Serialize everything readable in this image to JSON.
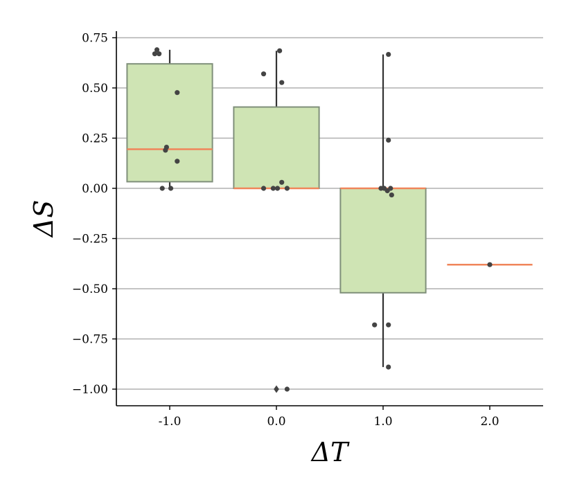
{
  "chart_data": {
    "type": "box",
    "xlabel": "ΔT",
    "ylabel": "ΔS",
    "categories": [
      "-1.0",
      "0.0",
      "1.0",
      "2.0"
    ],
    "ylim": [
      -1.08,
      0.78
    ],
    "yticks": [
      0.75,
      0.5,
      0.25,
      0.0,
      -0.25,
      -0.5,
      -0.75,
      -1.0
    ],
    "ytick_labels": [
      "0.75",
      "0.50",
      "0.25",
      "0.00",
      "−0.25",
      "−0.50",
      "−0.75",
      "−1.00"
    ],
    "grid": "horizontal",
    "colors": {
      "box_fill": "#cfe4b4",
      "box_edge": "#7f8f7a",
      "median": "#f0855a",
      "points": "#444444",
      "grid": "#b0b0b0"
    },
    "boxes": [
      {
        "category": "-1.0",
        "q1": 0.033,
        "median": 0.195,
        "q3": 0.62,
        "whisker_low": 0.0,
        "whisker_high": 0.69,
        "outliers": []
      },
      {
        "category": "0.0",
        "q1": 0.0,
        "median": 0.0,
        "q3": 0.405,
        "whisker_low": 0.0,
        "whisker_high": 0.685,
        "outliers": [
          -1.0
        ]
      },
      {
        "category": "1.0",
        "q1": -0.52,
        "median": 0.0,
        "q3": 0.0,
        "whisker_low": -0.89,
        "whisker_high": 0.667,
        "outliers": []
      },
      {
        "category": "2.0",
        "q1": -0.38,
        "median": -0.38,
        "q3": -0.38,
        "whisker_low": -0.38,
        "whisker_high": -0.38,
        "outliers": []
      }
    ],
    "points": [
      {
        "category": "-1.0",
        "jitter": -0.12,
        "y": 0.69
      },
      {
        "category": "-1.0",
        "jitter": -0.14,
        "y": 0.67
      },
      {
        "category": "-1.0",
        "jitter": -0.1,
        "y": 0.67
      },
      {
        "category": "-1.0",
        "jitter": 0.07,
        "y": 0.477
      },
      {
        "category": "-1.0",
        "jitter": -0.03,
        "y": 0.205
      },
      {
        "category": "-1.0",
        "jitter": -0.04,
        "y": 0.19
      },
      {
        "category": "-1.0",
        "jitter": 0.07,
        "y": 0.135
      },
      {
        "category": "-1.0",
        "jitter": -0.07,
        "y": 0.0
      },
      {
        "category": "-1.0",
        "jitter": 0.01,
        "y": 0.0
      },
      {
        "category": "0.0",
        "jitter": 0.03,
        "y": 0.685
      },
      {
        "category": "0.0",
        "jitter": -0.12,
        "y": 0.57
      },
      {
        "category": "0.0",
        "jitter": 0.05,
        "y": 0.527
      },
      {
        "category": "0.0",
        "jitter": 0.05,
        "y": 0.03
      },
      {
        "category": "0.0",
        "jitter": -0.12,
        "y": 0.0
      },
      {
        "category": "0.0",
        "jitter": -0.03,
        "y": 0.0
      },
      {
        "category": "0.0",
        "jitter": 0.01,
        "y": 0.0
      },
      {
        "category": "0.0",
        "jitter": 0.1,
        "y": 0.0
      },
      {
        "category": "0.0",
        "jitter": 0.1,
        "y": -1.0
      },
      {
        "category": "1.0",
        "jitter": 0.05,
        "y": 0.667
      },
      {
        "category": "1.0",
        "jitter": 0.05,
        "y": 0.24
      },
      {
        "category": "1.0",
        "jitter": -0.02,
        "y": 0.0
      },
      {
        "category": "1.0",
        "jitter": 0.01,
        "y": 0.0
      },
      {
        "category": "1.0",
        "jitter": 0.07,
        "y": 0.0
      },
      {
        "category": "1.0",
        "jitter": 0.04,
        "y": -0.012
      },
      {
        "category": "1.0",
        "jitter": 0.08,
        "y": -0.033
      },
      {
        "category": "1.0",
        "jitter": -0.08,
        "y": -0.68
      },
      {
        "category": "1.0",
        "jitter": 0.05,
        "y": -0.68
      },
      {
        "category": "1.0",
        "jitter": 0.05,
        "y": -0.89
      },
      {
        "category": "2.0",
        "jitter": 0.0,
        "y": -0.38
      }
    ]
  }
}
